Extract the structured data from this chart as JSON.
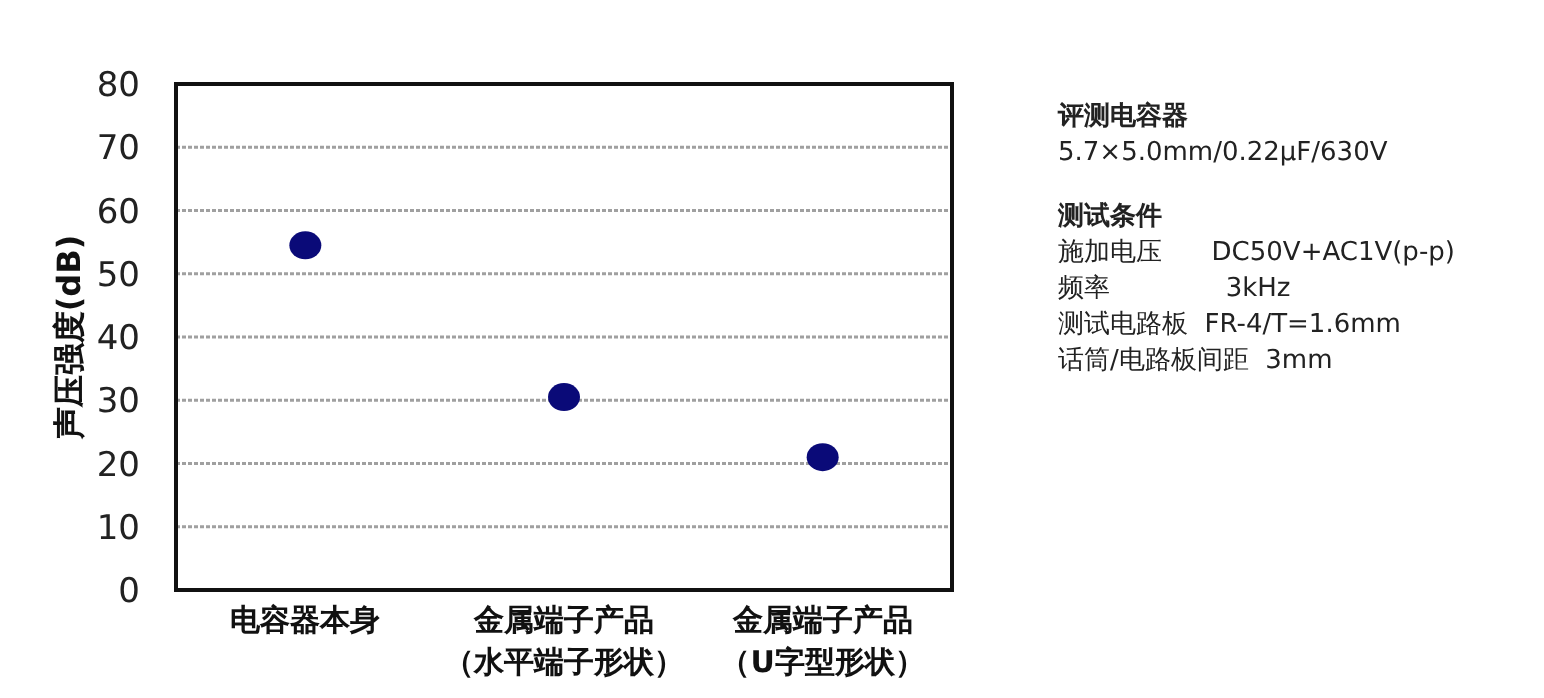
{
  "chart_data": {
    "type": "scatter",
    "ylabel": "声压强度(dB)",
    "categories": [
      "电容器本身",
      "金属端子产品（水平端子形状）",
      "金属端子产品（U字型形状）"
    ],
    "series": [
      {
        "color": "#0a0a78",
        "values": [
          54.5,
          30.5,
          21
        ]
      }
    ],
    "ylim": [
      0,
      80
    ],
    "yticks": [
      0,
      10,
      20,
      30,
      40,
      50,
      60,
      70,
      80
    ],
    "grid": "y",
    "marker": "circle",
    "annotations": [
      "评测电容器",
      "5.7×5.0mm/0.22μF/630V",
      "测试条件",
      "施加电压      DC50V+AC1V(p-p)",
      "频率              3kHz",
      "测试电路板  FR-4/T=1.6mm",
      "话筒/电路板间距  3mm"
    ]
  }
}
